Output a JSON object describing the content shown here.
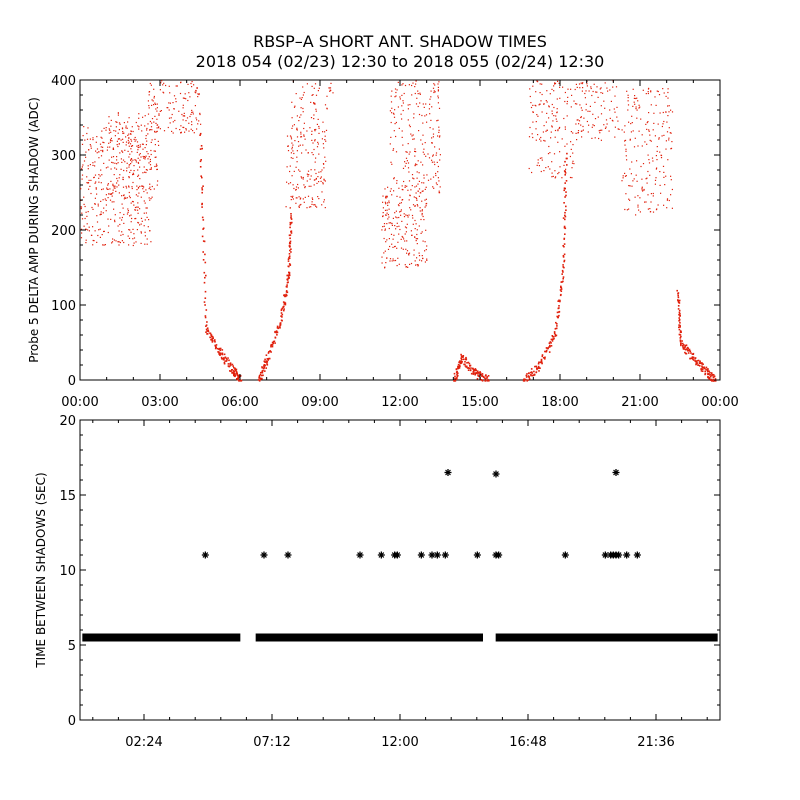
{
  "figure": {
    "title_line1": "RBSP–A SHORT ANT. SHADOW TIMES",
    "title_line2": "2018 054 (02/23) 12:30 to 2018 055 (02/24) 12:30"
  },
  "colors": {
    "top_points": "#e0200c",
    "bottom_points": "#000000",
    "axes": "#000000"
  },
  "chart_data": [
    {
      "type": "scatter",
      "ylabel": "Probe 5 DELTA AMP DURING SHADOW (ADC)",
      "xlabel": "",
      "xlim_hours": [
        0,
        24
      ],
      "ylim": [
        0,
        400
      ],
      "x_ticks": [
        "00:00",
        "03:00",
        "06:00",
        "09:00",
        "12:00",
        "15:00",
        "18:00",
        "21:00",
        "00:00"
      ],
      "y_ticks": [
        "0",
        "100",
        "200",
        "300",
        "400"
      ],
      "marker": "dot",
      "regions": [
        {
          "x": [
            0.0,
            2.7
          ],
          "y_low": 180,
          "y_high": 340,
          "n": 420
        },
        {
          "x": [
            1.0,
            3.0
          ],
          "y_low": 250,
          "y_high": 360,
          "n": 140
        },
        {
          "x": [
            2.5,
            4.5
          ],
          "y_low": 330,
          "y_high": 400,
          "n": 140
        },
        {
          "x": [
            7.7,
            9.2
          ],
          "y_low": 230,
          "y_high": 340,
          "n": 170
        },
        {
          "x": [
            7.9,
            9.5
          ],
          "y_low": 330,
          "y_high": 400,
          "n": 60
        },
        {
          "x": [
            11.3,
            13.0
          ],
          "y_low": 150,
          "y_high": 260,
          "n": 230
        },
        {
          "x": [
            11.6,
            13.5
          ],
          "y_low": 250,
          "y_high": 400,
          "n": 210
        },
        {
          "x": [
            16.8,
            18.5
          ],
          "y_low": 270,
          "y_high": 400,
          "n": 150
        },
        {
          "x": [
            18.5,
            20.2
          ],
          "y_low": 320,
          "y_high": 400,
          "n": 110
        },
        {
          "x": [
            20.3,
            22.2
          ],
          "y_low": 220,
          "y_high": 390,
          "n": 210
        }
      ],
      "shadow_curves": [
        {
          "x": [
            [
              4.5,
              330
            ],
            [
              4.7,
              70
            ],
            [
              5.2,
              40
            ],
            [
              5.7,
              15
            ],
            [
              6.0,
              0
            ]
          ]
        },
        {
          "x": [
            [
              6.7,
              0
            ],
            [
              7.0,
              30
            ],
            [
              7.5,
              80
            ],
            [
              7.8,
              140
            ],
            [
              7.9,
              220
            ]
          ]
        },
        {
          "x": [
            [
              14.0,
              0
            ],
            [
              14.3,
              30
            ],
            [
              14.8,
              10
            ],
            [
              15.3,
              0
            ]
          ]
        },
        {
          "x": [
            [
              16.6,
              0
            ],
            [
              17.2,
              20
            ],
            [
              17.8,
              60
            ],
            [
              18.1,
              150
            ],
            [
              18.2,
              300
            ]
          ]
        },
        {
          "x": [
            [
              22.4,
              120
            ],
            [
              22.5,
              50
            ],
            [
              23.0,
              30
            ],
            [
              23.5,
              10
            ],
            [
              23.8,
              0
            ]
          ]
        }
      ]
    },
    {
      "type": "scatter",
      "ylabel": "TIME BETWEEN SHADOWS (SEC)",
      "xlabel": "",
      "xlim_hours": [
        0,
        24
      ],
      "ylim": [
        0,
        20
      ],
      "x_ticks": [
        {
          "label": "02:24",
          "hours": 2.4
        },
        {
          "label": "07:12",
          "hours": 7.2
        },
        {
          "label": "12:00",
          "hours": 12.0
        },
        {
          "label": "16:48",
          "hours": 16.8
        },
        {
          "label": "21:36",
          "hours": 21.6
        }
      ],
      "y_ticks": [
        "0",
        "5",
        "10",
        "15",
        "20"
      ],
      "marker": "asterisk",
      "baseline_value": 5.5,
      "baseline_segments_hours": [
        [
          0.2,
          5.9
        ],
        [
          6.7,
          15.0
        ],
        [
          15.7,
          23.8
        ]
      ],
      "points": [
        [
          4.7,
          11
        ],
        [
          6.9,
          11
        ],
        [
          7.8,
          11
        ],
        [
          10.5,
          11
        ],
        [
          11.3,
          11
        ],
        [
          11.8,
          11
        ],
        [
          11.9,
          11
        ],
        [
          12.8,
          11
        ],
        [
          13.2,
          11
        ],
        [
          13.4,
          11
        ],
        [
          13.7,
          11
        ],
        [
          13.8,
          16.5
        ],
        [
          14.9,
          11
        ],
        [
          15.6,
          11
        ],
        [
          15.7,
          11
        ],
        [
          15.6,
          16.4
        ],
        [
          18.2,
          11
        ],
        [
          19.7,
          11
        ],
        [
          19.9,
          11
        ],
        [
          20.0,
          11
        ],
        [
          20.1,
          11
        ],
        [
          20.2,
          11
        ],
        [
          20.5,
          11
        ],
        [
          20.9,
          11
        ],
        [
          20.1,
          16.5
        ]
      ]
    }
  ]
}
